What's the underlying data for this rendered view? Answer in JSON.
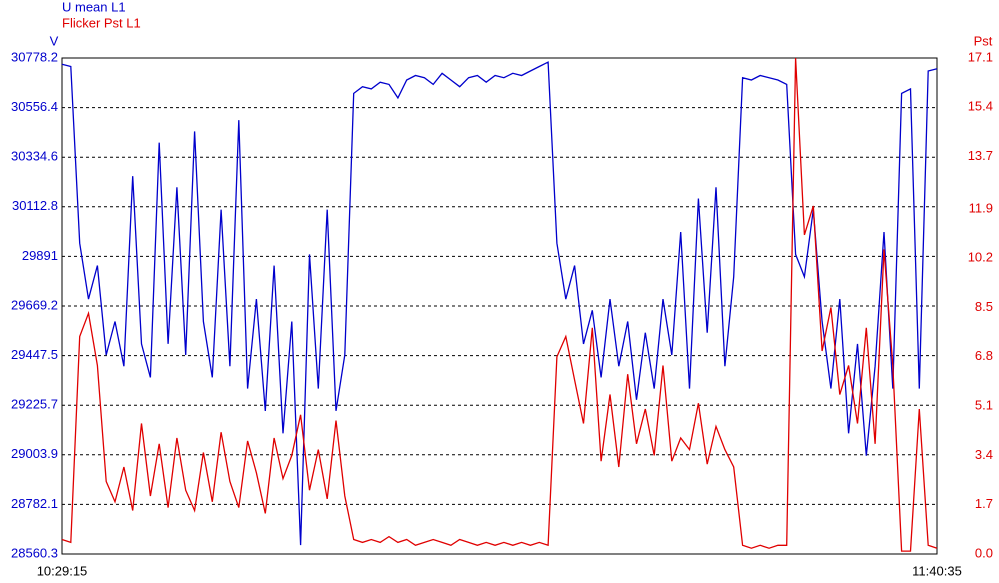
{
  "chart_data": {
    "type": "line",
    "series": [
      {
        "name": "U mean L1",
        "color": "#0000cc",
        "axis": "y",
        "values": [
          30750,
          30740,
          29950,
          29700,
          29850,
          29450,
          29600,
          29400,
          30250,
          29500,
          29350,
          30400,
          29500,
          30200,
          29450,
          30450,
          29600,
          29350,
          30100,
          29400,
          30500,
          29300,
          29700,
          29200,
          29850,
          29100,
          29600,
          28600,
          29900,
          29300,
          30100,
          29200,
          29450,
          30620,
          30650,
          30640,
          30670,
          30660,
          30600,
          30680,
          30700,
          30690,
          30660,
          30710,
          30680,
          30650,
          30690,
          30700,
          30670,
          30700,
          30690,
          30710,
          30700,
          30720,
          30740,
          30760,
          29950,
          29700,
          29850,
          29500,
          29650,
          29350,
          29700,
          29400,
          29600,
          29250,
          29550,
          29300,
          29700,
          29450,
          30000,
          29300,
          30150,
          29550,
          30200,
          29400,
          29800,
          30690,
          30680,
          30700,
          30690,
          30680,
          30660,
          29900,
          29800,
          30100,
          29600,
          29300,
          29700,
          29100,
          29500,
          29000,
          29400,
          30000,
          29300,
          30620,
          30640,
          29300,
          30720,
          30730
        ]
      },
      {
        "name": "Flicker Pst L1",
        "color": "#e00000",
        "axis": "y2",
        "values": [
          0.5,
          0.4,
          7.5,
          8.3,
          6.5,
          2.5,
          1.8,
          3.0,
          1.5,
          4.5,
          2.0,
          3.8,
          1.6,
          4.0,
          2.2,
          1.5,
          3.5,
          1.8,
          4.2,
          2.5,
          1.6,
          3.9,
          2.8,
          1.4,
          4.0,
          2.6,
          3.4,
          4.8,
          2.2,
          3.6,
          1.9,
          4.6,
          2.0,
          0.5,
          0.4,
          0.5,
          0.4,
          0.6,
          0.4,
          0.5,
          0.3,
          0.4,
          0.5,
          0.4,
          0.3,
          0.5,
          0.4,
          0.3,
          0.4,
          0.3,
          0.4,
          0.3,
          0.4,
          0.3,
          0.4,
          0.3,
          6.8,
          7.5,
          6.0,
          4.5,
          7.8,
          3.2,
          5.5,
          3.0,
          6.2,
          3.8,
          5.0,
          3.4,
          6.5,
          3.2,
          4.0,
          3.6,
          5.2,
          3.1,
          4.4,
          3.6,
          3.0,
          0.3,
          0.2,
          0.3,
          0.2,
          0.3,
          0.3,
          17.1,
          11.0,
          12.0,
          7.0,
          8.5,
          5.5,
          6.5,
          4.5,
          7.8,
          3.8,
          10.5,
          6.5,
          0.1,
          0.1,
          5.0,
          0.3,
          0.2
        ]
      }
    ],
    "categories": [
      "10:29:15",
      null,
      null,
      null,
      null,
      null,
      null,
      null,
      null,
      null,
      null,
      null,
      null,
      null,
      null,
      null,
      null,
      null,
      null,
      null,
      null,
      null,
      null,
      null,
      null,
      null,
      null,
      null,
      null,
      null,
      null,
      null,
      null,
      null,
      null,
      null,
      null,
      null,
      null,
      null,
      null,
      null,
      null,
      null,
      null,
      null,
      null,
      null,
      null,
      null,
      null,
      null,
      null,
      null,
      null,
      null,
      null,
      null,
      null,
      null,
      null,
      null,
      null,
      null,
      null,
      null,
      null,
      null,
      null,
      null,
      null,
      null,
      null,
      null,
      null,
      null,
      null,
      null,
      null,
      null,
      null,
      null,
      null,
      null,
      null,
      null,
      null,
      null,
      null,
      null,
      null,
      null,
      null,
      null,
      null,
      null,
      null,
      null,
      null,
      "11:40:35"
    ],
    "y_label": "V",
    "y2_label": "Pst",
    "ylim": [
      28560.3,
      30778.2
    ],
    "yticks": [
      28560.3,
      28782.1,
      29003.9,
      29225.7,
      29447.5,
      29669.2,
      29891.0,
      30112.8,
      30334.6,
      30556.4,
      30778.2
    ],
    "y2lim": [
      0,
      17.1
    ],
    "y2ticks": [
      {
        "value": 0,
        "label": "0.0"
      },
      1.7,
      3.4,
      5.1,
      6.8,
      8.5,
      10.2,
      11.9,
      13.7,
      15.4,
      17.1
    ],
    "grid": true
  }
}
